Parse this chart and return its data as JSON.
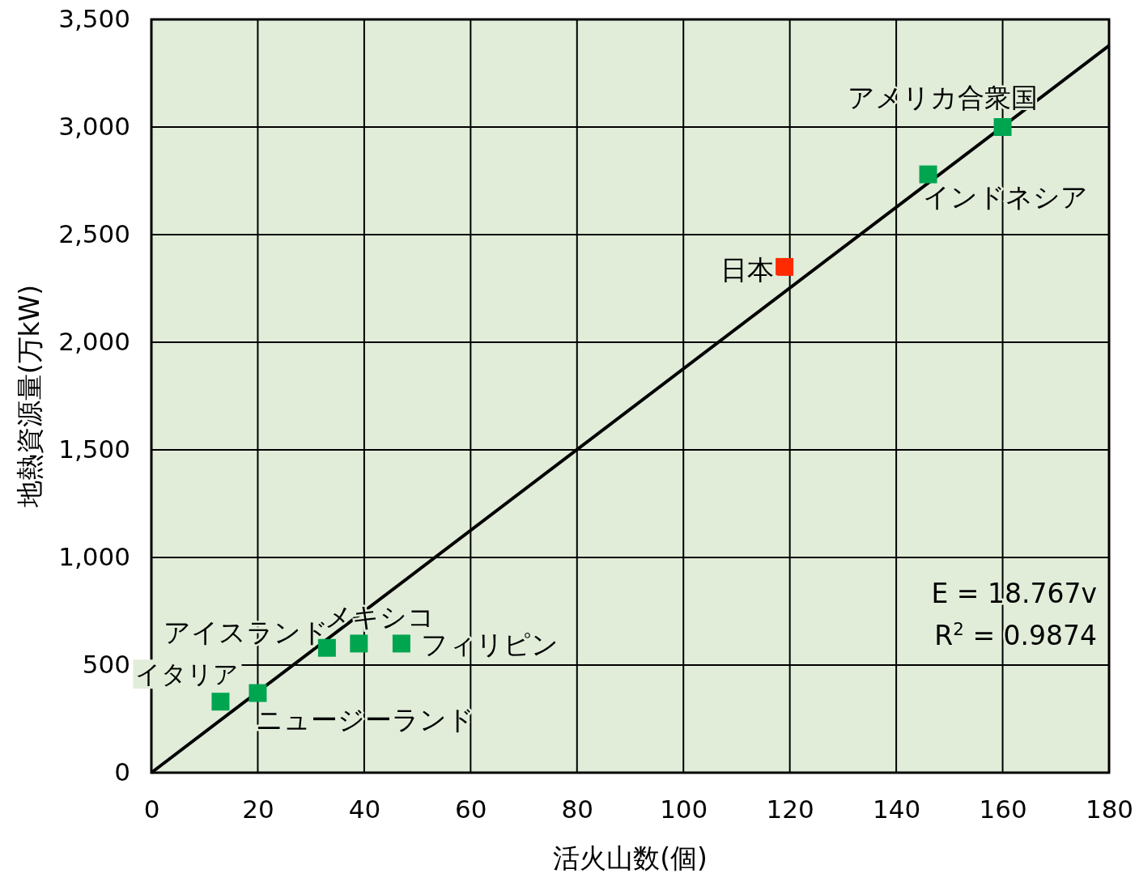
{
  "chart_data": {
    "type": "scatter",
    "xlabel": "活火山数(個)",
    "ylabel": "地熱資源量(万kW)",
    "xlim": [
      0,
      180
    ],
    "xticks": [
      0,
      20,
      40,
      60,
      80,
      100,
      120,
      140,
      160,
      180
    ],
    "ylim": [
      0,
      3500
    ],
    "yticks": [
      {
        "value": 0,
        "label": "0"
      },
      {
        "value": 500,
        "label": "500"
      },
      {
        "value": 1000,
        "label": "1,000"
      },
      {
        "value": 1500,
        "label": "1,500"
      },
      {
        "value": 2000,
        "label": "2,000"
      },
      {
        "value": 2500,
        "label": "2,500"
      },
      {
        "value": 3000,
        "label": "3,000"
      },
      {
        "value": 3500,
        "label": "3,500"
      }
    ],
    "grid": true,
    "marker": "square",
    "series": [
      {
        "type": "scatter",
        "x": [
          13,
          20,
          33,
          39,
          47,
          119,
          146,
          160
        ],
        "values": [
          330,
          370,
          580,
          600,
          600,
          2350,
          2780,
          3000
        ],
        "colors": [
          "#00a550",
          "#00a550",
          "#00a550",
          "#00a550",
          "#00a550",
          "#ff2a00",
          "#00a550",
          "#00a550"
        ]
      },
      {
        "type": "line",
        "marker": "none",
        "color": "#000000",
        "x": [
          0,
          180
        ],
        "values": [
          0,
          3378
        ]
      }
    ],
    "annotations": [
      {
        "text": "イタリア",
        "x": 13,
        "y": 330
      },
      {
        "text": "ニュージーランド",
        "x": 20,
        "y": 370
      },
      {
        "text": "アイスランド",
        "x": 33,
        "y": 580
      },
      {
        "text": "メキシコ",
        "x": 39,
        "y": 600
      },
      {
        "text": "フィリピン",
        "x": 47,
        "y": 600
      },
      {
        "text": "日本",
        "x": 119,
        "y": 2350
      },
      {
        "text": "インドネシア",
        "x": 146,
        "y": 2780
      },
      {
        "text": "アメリカ合衆国",
        "x": 160,
        "y": 3000
      },
      "E = 18.767v",
      "R$^{2}$ = 0.9874"
    ]
  }
}
